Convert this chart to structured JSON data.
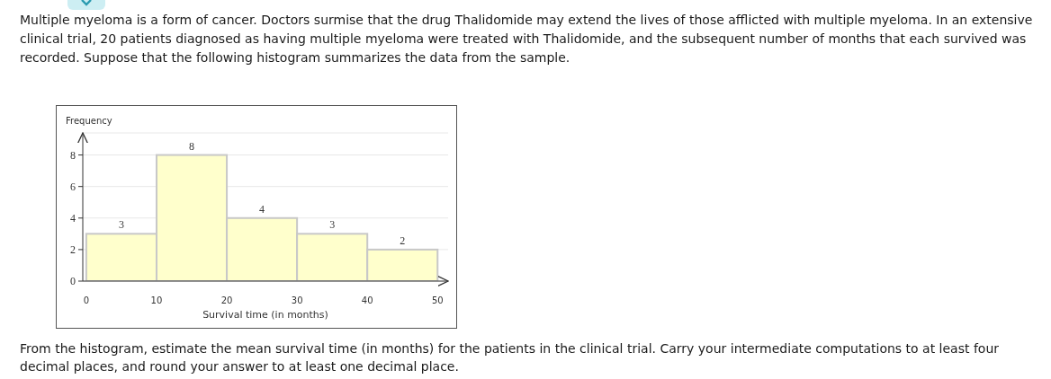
{
  "chart_data": {
    "type": "histogram",
    "bins": [
      0,
      10,
      20,
      30,
      40,
      50
    ],
    "values": [
      3,
      8,
      4,
      3,
      2
    ],
    "color": "#ffffcc",
    "xlabel": "Survival time (in months)",
    "ylabel": "Frequency",
    "xlim": [
      -0.5,
      51.5
    ],
    "ylim": [
      0,
      9.4
    ],
    "xticks": [
      0,
      10,
      20,
      30,
      40,
      50
    ],
    "yticks": [
      0,
      2,
      4,
      6,
      8
    ],
    "grid": "y",
    "data_labels": true,
    "annotations": [
      "Multiple myeloma is a form of cancer. Doctors surmise that the drug Thalidomide may extend the lives of those afflicted with multiple myeloma. In an extensive clinical trial, 20 patients diagnosed as having multiple myeloma were treated with Thalidomide, and the subsequent number of months that each survived was recorded. Suppose that the following histogram summarizes the data from the sample.",
      "From the histogram, estimate the mean survival time (in months) for the patients in the clinical trial. Carry your intermediate computations to at least four decimal places, and round your answer to at least one decimal place."
    ]
  }
}
